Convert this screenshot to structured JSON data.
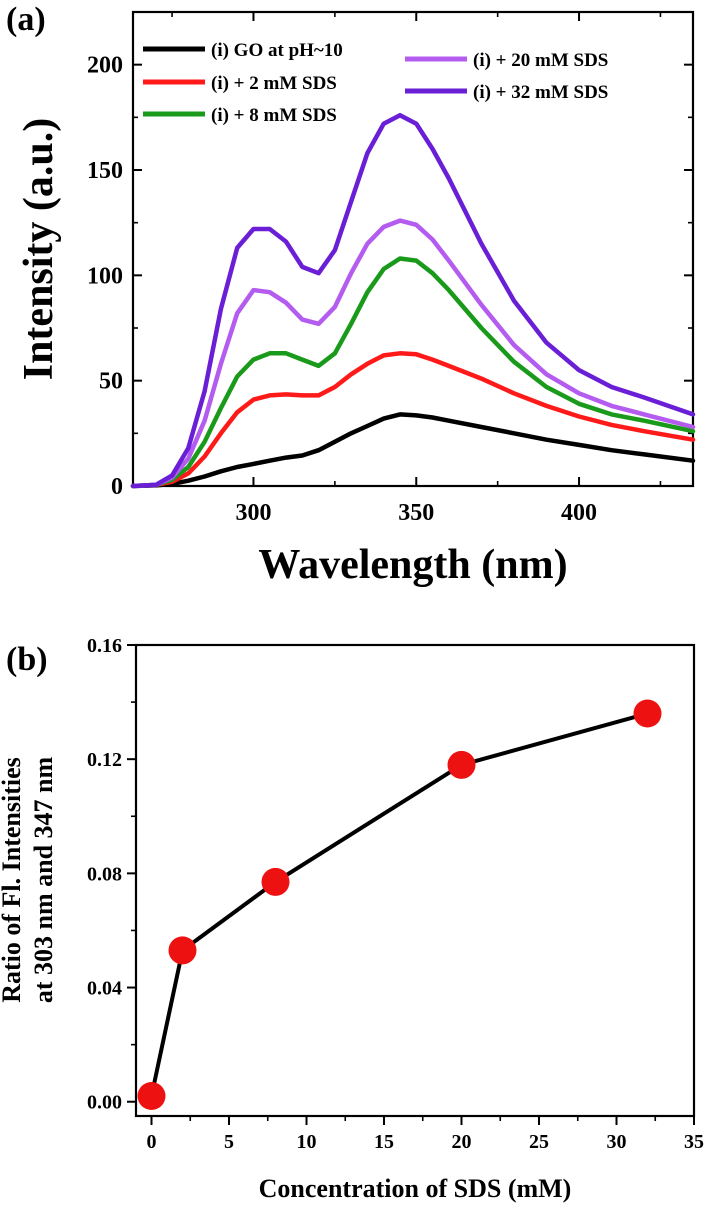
{
  "chart_data": [
    {
      "type": "line",
      "panel_label": "(a)",
      "xlabel": "Wavelength (nm)",
      "ylabel": "Intensity (a.u.)",
      "xlim": [
        263,
        435
      ],
      "ylim": [
        0,
        225
      ],
      "xticks": [
        300,
        350,
        400
      ],
      "yticks": [
        0,
        50,
        100,
        150,
        200
      ],
      "legend_position": "top",
      "grid": false,
      "series": [
        {
          "name": "(i) GO at pH~10",
          "color": "#000000",
          "x": [
            263,
            270,
            275,
            280,
            285,
            290,
            295,
            300,
            305,
            310,
            315,
            320,
            325,
            330,
            335,
            340,
            345,
            350,
            355,
            360,
            370,
            380,
            390,
            400,
            410,
            420,
            435
          ],
          "y": [
            0,
            0.3,
            1,
            2.5,
            4.5,
            7,
            9,
            10.5,
            12,
            13.5,
            14.5,
            17,
            21,
            25,
            28.5,
            32,
            34,
            33.5,
            32.5,
            31,
            28,
            25,
            22,
            19.5,
            17,
            15,
            12
          ]
        },
        {
          "name": "(i) + 2 mM SDS",
          "color": "#ff1a1a",
          "x": [
            263,
            270,
            275,
            280,
            285,
            290,
            295,
            300,
            305,
            310,
            315,
            320,
            325,
            330,
            335,
            340,
            345,
            350,
            355,
            360,
            370,
            380,
            390,
            400,
            410,
            420,
            435
          ],
          "y": [
            0,
            0.5,
            2,
            6,
            14,
            25,
            35,
            41,
            43,
            43.5,
            43,
            43,
            47,
            53,
            58,
            62,
            63,
            62.5,
            60,
            57,
            51,
            44,
            38,
            33,
            29,
            26,
            22
          ]
        },
        {
          "name": "(i) + 8 mM SDS",
          "color": "#1a9a1a",
          "x": [
            263,
            270,
            275,
            280,
            285,
            290,
            295,
            300,
            305,
            310,
            315,
            320,
            325,
            330,
            335,
            340,
            345,
            350,
            355,
            360,
            370,
            380,
            390,
            400,
            410,
            420,
            435
          ],
          "y": [
            0,
            0.5,
            3,
            9,
            21,
            37,
            52,
            60,
            63,
            63,
            60,
            57,
            63,
            77,
            92,
            103,
            108,
            107,
            101,
            93,
            75,
            59,
            47,
            39,
            34,
            31,
            26
          ]
        },
        {
          "name": "(i) + 20 mM SDS",
          "color": "#b45cf0",
          "x": [
            263,
            270,
            275,
            280,
            285,
            290,
            295,
            300,
            305,
            310,
            315,
            320,
            325,
            330,
            335,
            340,
            345,
            350,
            355,
            360,
            370,
            380,
            390,
            400,
            410,
            420,
            435
          ],
          "y": [
            0,
            0.5,
            4,
            13,
            31,
            58,
            82,
            93,
            92,
            87,
            79,
            77,
            85,
            101,
            115,
            123,
            126,
            124,
            117,
            107,
            86,
            67,
            53,
            44,
            38,
            34,
            28
          ]
        },
        {
          "name": "(i) + 32 mM SDS",
          "color": "#6a1fd6",
          "x": [
            263,
            270,
            275,
            280,
            285,
            290,
            295,
            300,
            305,
            310,
            315,
            320,
            325,
            330,
            335,
            340,
            345,
            350,
            355,
            360,
            370,
            380,
            390,
            400,
            410,
            420,
            435
          ],
          "y": [
            0,
            0.5,
            5,
            18,
            45,
            84,
            113,
            122,
            122,
            116,
            104,
            101,
            112,
            135,
            158,
            172,
            176,
            172,
            160,
            146,
            115,
            88,
            68,
            55,
            47,
            42,
            34
          ]
        }
      ]
    },
    {
      "type": "scatter",
      "panel_label": "(b)",
      "xlabel": "Concentration of SDS (mM)",
      "ylabel_lines": [
        "Ratio of Fl. Intensities",
        "at 303 nm and 347 nm"
      ],
      "xlim": [
        -1,
        35
      ],
      "ylim": [
        -0.005,
        0.16
      ],
      "xticks": [
        0,
        5,
        10,
        15,
        20,
        25,
        30,
        35
      ],
      "ytick_labels": [
        "0.00",
        "0.04",
        "0.08",
        "0.12",
        "0.16"
      ],
      "yticks": [
        0,
        0.04,
        0.08,
        0.12,
        0.16
      ],
      "grid": false,
      "series": [
        {
          "line_color": "#000000",
          "marker_color": "#ee1111",
          "x": [
            0,
            2,
            8,
            20,
            32
          ],
          "y": [
            0.002,
            0.053,
            0.077,
            0.118,
            0.136
          ]
        }
      ]
    }
  ]
}
